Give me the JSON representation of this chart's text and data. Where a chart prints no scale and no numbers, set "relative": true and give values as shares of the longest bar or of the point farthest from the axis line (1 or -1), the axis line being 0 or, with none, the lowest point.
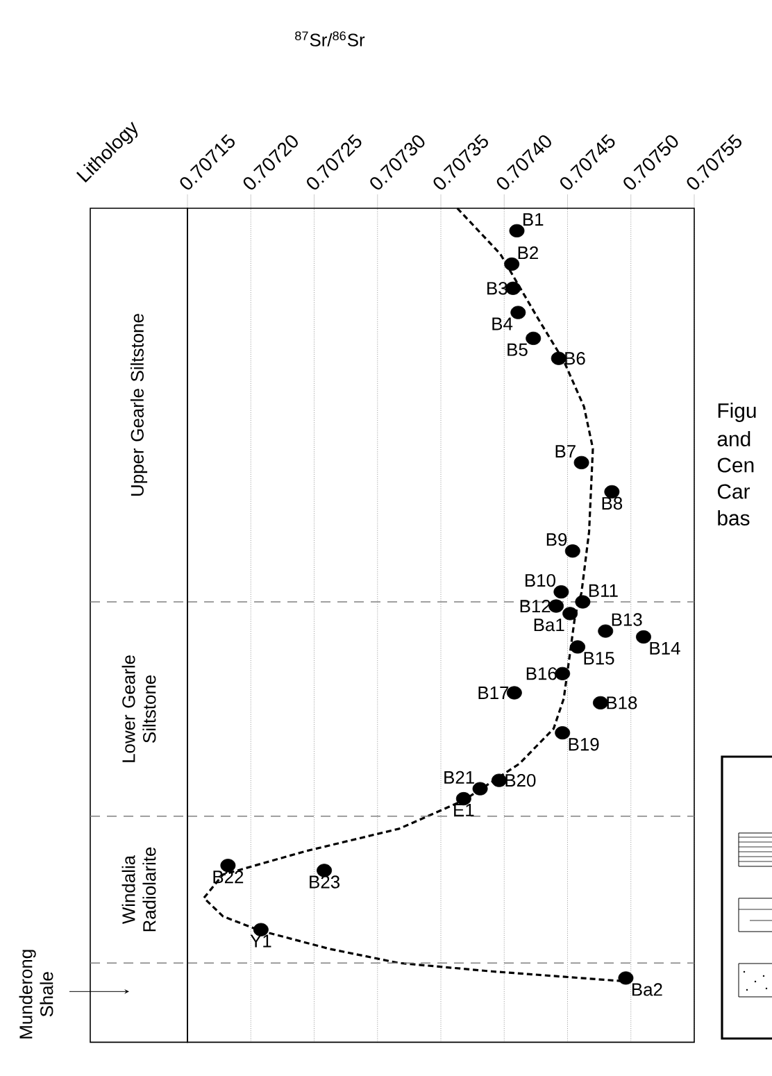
{
  "chart_data": {
    "type": "scatter",
    "relative": true,
    "xlabel": "$^{87}$Sr/$^{86}$Sr",
    "xlim": [
      0.70715,
      0.70755
    ],
    "xticks": [
      {
        "value": 0.70715,
        "label": "0.70715"
      },
      {
        "value": 0.7072,
        "label": "0.70720"
      },
      {
        "value": 0.70725,
        "label": "0.70725"
      },
      {
        "value": 0.7073,
        "label": "0.70730"
      },
      {
        "value": 0.70735,
        "label": "0.70735"
      },
      {
        "value": 0.7074,
        "label": "0.70740"
      },
      {
        "value": 0.70745,
        "label": "0.70745"
      },
      {
        "value": 0.7075,
        "label": "0.70750"
      },
      {
        "value": 0.70755,
        "label": "0.70755"
      }
    ],
    "grid": "x",
    "marker": "circle",
    "series": [
      {
        "color": "#000000",
        "x": [
          0.70741,
          0.707406,
          0.707407,
          0.707411,
          0.707423,
          0.707443,
          0.707461,
          0.707485,
          0.707454,
          0.707445,
          0.707462,
          0.707441,
          0.707452,
          0.70748,
          0.70751,
          0.707458,
          0.707446,
          0.707408,
          0.707476,
          0.707446,
          0.707396,
          0.707381,
          0.707368,
          0.707182,
          0.707258,
          0.707208,
          0.707496
        ],
        "values": [
          0.973,
          0.933,
          0.904,
          0.875,
          0.844,
          0.82,
          0.695,
          0.66,
          0.589,
          0.54,
          0.528,
          0.523,
          0.514,
          0.493,
          0.486,
          0.474,
          0.442,
          0.419,
          0.407,
          0.371,
          0.314,
          0.304,
          0.292,
          0.212,
          0.206,
          0.135,
          0.077
        ]
      },
      {
        "type": "line",
        "color": "#000000",
        "line_style": "dashed",
        "marker": "none",
        "x": [
          0.707363,
          0.707397,
          0.707427,
          0.707447,
          0.707463,
          0.70747,
          0.707467,
          0.707461,
          0.707456,
          0.707452,
          0.707447,
          0.707439,
          0.707412,
          0.707368,
          0.707317,
          0.707243,
          0.707178,
          0.707163,
          0.707178,
          0.707207,
          0.707262,
          0.707317,
          0.70739,
          0.707496
        ],
        "values": [
          1.0,
          0.945,
          0.867,
          0.817,
          0.762,
          0.712,
          0.612,
          0.539,
          0.512,
          0.467,
          0.412,
          0.376,
          0.334,
          0.29,
          0.256,
          0.229,
          0.201,
          0.173,
          0.151,
          0.134,
          0.112,
          0.095,
          0.085,
          0.073
        ]
      }
    ],
    "ref_lines": [
      {
        "axis": "y",
        "value": 0.528,
        "color": "#808080",
        "line_style": "dashed"
      },
      {
        "axis": "y",
        "value": 0.271,
        "color": "#808080",
        "line_style": "dashed"
      },
      {
        "axis": "y",
        "value": 0.095,
        "color": "#808080",
        "line_style": "dashed"
      }
    ],
    "annotations": [
      "Lithology",
      "Upper Gearle Siltstone",
      "Lower Gearle Siltstone",
      "Windalia Radiolarite",
      "Munderong Shale",
      "Figu",
      "and",
      "Cen",
      "Car",
      "bas",
      {
        "text": "B1",
        "x": 0.70741,
        "y": 0.973
      },
      {
        "text": "B2",
        "x": 0.707406,
        "y": 0.933
      },
      {
        "text": "B3",
        "x": 0.707407,
        "y": 0.904
      },
      {
        "text": "B4",
        "x": 0.707411,
        "y": 0.875
      },
      {
        "text": "B5",
        "x": 0.707423,
        "y": 0.844
      },
      {
        "text": "B6",
        "x": 0.707443,
        "y": 0.82
      },
      {
        "text": "B7",
        "x": 0.707461,
        "y": 0.695
      },
      {
        "text": "B8",
        "x": 0.707485,
        "y": 0.66
      },
      {
        "text": "B9",
        "x": 0.707454,
        "y": 0.589
      },
      {
        "text": "B10",
        "x": 0.707445,
        "y": 0.54
      },
      {
        "text": "B11",
        "x": 0.707462,
        "y": 0.528
      },
      {
        "text": "B12",
        "x": 0.707441,
        "y": 0.523
      },
      {
        "text": "Ba1",
        "x": 0.707452,
        "y": 0.514
      },
      {
        "text": "B13",
        "x": 0.70748,
        "y": 0.493
      },
      {
        "text": "B14",
        "x": 0.70751,
        "y": 0.486
      },
      {
        "text": "B15",
        "x": 0.707458,
        "y": 0.474
      },
      {
        "text": "B16",
        "x": 0.707446,
        "y": 0.442
      },
      {
        "text": "B17",
        "x": 0.707408,
        "y": 0.419
      },
      {
        "text": "B18",
        "x": 0.707476,
        "y": 0.407
      },
      {
        "text": "B19",
        "x": 0.707446,
        "y": 0.371
      },
      {
        "text": "B20",
        "x": 0.707396,
        "y": 0.314
      },
      {
        "text": "B21",
        "x": 0.707381,
        "y": 0.304
      },
      {
        "text": "E1",
        "x": 0.707368,
        "y": 0.292
      },
      {
        "text": "B22",
        "x": 0.707182,
        "y": 0.212
      },
      {
        "text": "B23",
        "x": 0.707258,
        "y": 0.206
      },
      {
        "text": "Y1",
        "x": 0.707208,
        "y": 0.135
      },
      {
        "text": "Ba2",
        "x": 0.707496,
        "y": 0.077
      }
    ]
  }
}
